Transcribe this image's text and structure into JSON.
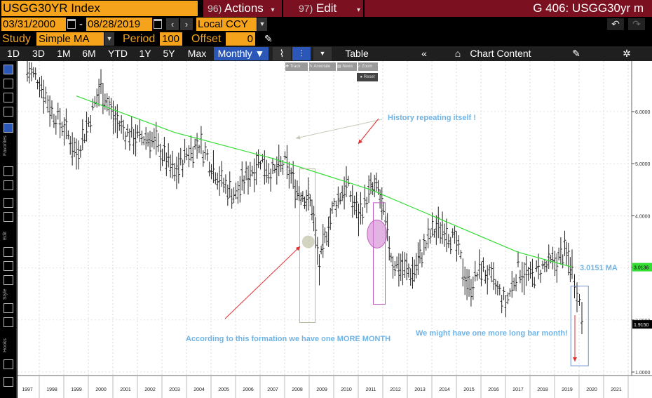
{
  "header": {
    "ticker": "USGG30YR Index",
    "actions": {
      "num": "96)",
      "label": "Actions"
    },
    "edit": {
      "num": "97)",
      "label": "Edit"
    },
    "graph_title": "G 406: USGG30yr m"
  },
  "dates": {
    "start": "03/31/2000",
    "separator": "-",
    "end": "08/28/2019",
    "currency": "Local CCY"
  },
  "study": {
    "label": "Study",
    "value": "Simple MA",
    "period_label": "Period",
    "period": "100",
    "offset_label": "Offset",
    "offset": "0"
  },
  "toolbar": {
    "ranges": [
      "1D",
      "3D",
      "1M",
      "6M",
      "YTD",
      "1Y",
      "5Y",
      "Max"
    ],
    "frequency": "Monthly ▼",
    "table": "Table",
    "chart_content": "Chart Content"
  },
  "mini_tools": {
    "track": "Track",
    "annotate": "Annotate",
    "news": "News",
    "zoom": "Zoom",
    "reset": "Reset"
  },
  "sidebar_labels": {
    "favorites": "Favorites",
    "edit": "Edit",
    "style": "Style",
    "hooks": "Hooks"
  },
  "colors": {
    "orange": "#f4a31a",
    "maroon": "#7a1020",
    "blue_selected": "#2a57b8",
    "ma_line": "#33dd33",
    "annotation_text": "#6fb4e6",
    "arrow_red": "#e23030",
    "arrow_gray": "#c8c8b8",
    "box_gray": "#b8b89a",
    "box_purple": "#c060c0",
    "box_blue": "#7090d0"
  },
  "chart_data": {
    "type": "line",
    "subtype": "ohlc-bars-monthly",
    "series": [
      {
        "name": "USGG30YR",
        "x": [
          1997.0,
          1997.5,
          1998.0,
          1998.5,
          1999.0,
          1999.5,
          2000.0,
          2000.5,
          2001.0,
          2001.5,
          2002.0,
          2002.5,
          2003.0,
          2003.5,
          2004.0,
          2004.5,
          2005.0,
          2005.5,
          2006.0,
          2006.5,
          2007.0,
          2007.5,
          2008.0,
          2008.3,
          2008.6,
          2008.9,
          2009.2,
          2009.5,
          2010.0,
          2010.5,
          2011.0,
          2011.3,
          2011.6,
          2011.9,
          2012.3,
          2012.7,
          2013.0,
          2013.5,
          2014.0,
          2014.5,
          2015.0,
          2015.5,
          2016.0,
          2016.5,
          2017.0,
          2017.5,
          2018.0,
          2018.5,
          2018.9,
          2019.2,
          2019.4,
          2019.6
        ],
        "values": [
          6.8,
          6.6,
          6.0,
          5.7,
          5.2,
          5.8,
          6.5,
          5.9,
          5.6,
          5.5,
          5.5,
          5.2,
          4.8,
          5.2,
          5.4,
          5.0,
          4.6,
          4.4,
          4.8,
          5.1,
          4.8,
          5.0,
          4.5,
          4.4,
          4.2,
          3.0,
          3.7,
          4.2,
          4.6,
          4.0,
          4.5,
          4.5,
          3.8,
          3.1,
          3.0,
          2.9,
          3.2,
          3.7,
          3.8,
          3.4,
          2.6,
          3.0,
          2.7,
          2.3,
          3.0,
          2.8,
          3.0,
          3.1,
          3.3,
          3.0,
          2.6,
          2.1
        ]
      },
      {
        "name": "MA",
        "x": [
          1999.0,
          2001.0,
          2003.0,
          2005.0,
          2007.0,
          2009.0,
          2011.0,
          2013.0,
          2015.0,
          2017.0,
          2019.2
        ],
        "values": [
          6.3,
          5.95,
          5.6,
          5.35,
          5.1,
          4.8,
          4.5,
          4.1,
          3.7,
          3.3,
          3.0151
        ]
      }
    ],
    "x_ticks": [
      "1997",
      "1998",
      "1999",
      "2000",
      "2001",
      "2002",
      "2003",
      "2004",
      "2005",
      "2006",
      "2007",
      "2008",
      "2009",
      "2010",
      "2011",
      "2012",
      "2013",
      "2014",
      "2015",
      "2016",
      "2017",
      "2018",
      "2019",
      "2020",
      "2021"
    ],
    "y_ticks": [
      "1.0000",
      "2.0000",
      "3.0000",
      "4.0000",
      "5.0000",
      "6.0000"
    ],
    "ylim": [
      1.0,
      7.0
    ],
    "last_price_label": "3.0136",
    "mark_label": "1.9150",
    "ma_label": "3.0151 MA",
    "annotations": [
      "History repeating itself !",
      "According to this formation we have one MORE MONTH",
      "We might have one more long bar month!"
    ]
  }
}
